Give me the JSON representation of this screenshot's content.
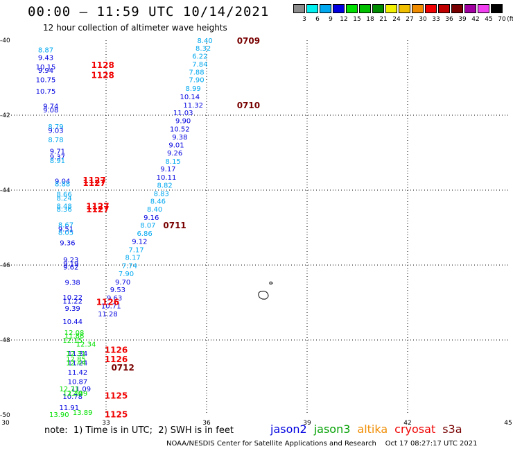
{
  "header": {
    "title": "00:00 – 11:59 UTC 10/14/2021",
    "subtitle": "12 hour collection of altimeter wave heights"
  },
  "legend": {
    "unit": "(ft)",
    "bins": [
      {
        "label": "3",
        "color": "#8c8c8c"
      },
      {
        "label": "6",
        "color": "#00f0f0"
      },
      {
        "label": "9",
        "color": "#00a8f0"
      },
      {
        "label": "12",
        "color": "#0000e0"
      },
      {
        "label": "15",
        "color": "#00e000"
      },
      {
        "label": "18",
        "color": "#00c000"
      },
      {
        "label": "21",
        "color": "#008c00"
      },
      {
        "label": "24",
        "color": "#f0f000"
      },
      {
        "label": "27",
        "color": "#f0c000"
      },
      {
        "label": "30",
        "color": "#f08c00"
      },
      {
        "label": "33",
        "color": "#f00000"
      },
      {
        "label": "36",
        "color": "#c00000"
      },
      {
        "label": "39",
        "color": "#780000"
      },
      {
        "label": "42",
        "color": "#a000a0"
      },
      {
        "label": "45",
        "color": "#f040f0"
      },
      {
        "label": "70",
        "color": "#000000"
      }
    ]
  },
  "axes": {
    "lon_ticks": [
      "30",
      "33",
      "36",
      "39",
      "42",
      "45"
    ],
    "lat_ticks": [
      "-40",
      "-42",
      "-44",
      "-46",
      "-48",
      "-50"
    ],
    "lon_range": [
      30,
      45
    ],
    "lat_range": [
      -40,
      -50
    ]
  },
  "tracks": [
    {
      "satellite": "jason2",
      "points": [
        {
          "lon": 31.2,
          "lat": -40.25,
          "swh": "8.87",
          "c": "#00a8f0"
        },
        {
          "lon": 31.2,
          "lat": -40.45,
          "swh": "9.43",
          "c": "#0000e0"
        },
        {
          "lon": 31.2,
          "lat": -40.7,
          "swh": "10.15",
          "c": "#0000e0"
        },
        {
          "lon": 31.2,
          "lat": -40.8,
          "swh": "9.94",
          "c": "#0000e0"
        },
        {
          "lon": 31.2,
          "lat": -41.05,
          "swh": "10.75",
          "c": "#0000e0"
        },
        {
          "lon": 31.2,
          "lat": -41.35,
          "swh": "10.75",
          "c": "#0000e0"
        },
        {
          "lon": 31.35,
          "lat": -41.75,
          "swh": "9.74",
          "c": "#0000e0"
        },
        {
          "lon": 31.35,
          "lat": -41.85,
          "swh": "9.08",
          "c": "#0000e0"
        },
        {
          "lon": 31.5,
          "lat": -42.3,
          "swh": "8.79",
          "c": "#00a8f0"
        },
        {
          "lon": 31.5,
          "lat": -42.4,
          "swh": "9.03",
          "c": "#0000e0"
        },
        {
          "lon": 31.5,
          "lat": -42.65,
          "swh": "8.78",
          "c": "#00a8f0"
        },
        {
          "lon": 31.55,
          "lat": -42.95,
          "swh": "9.71",
          "c": "#0000e0"
        },
        {
          "lon": 31.55,
          "lat": -43.1,
          "swh": "9.37",
          "c": "#0000e0"
        },
        {
          "lon": 31.55,
          "lat": -43.2,
          "swh": "8.91",
          "c": "#00a8f0"
        },
        {
          "lon": 31.7,
          "lat": -43.75,
          "swh": "9.04",
          "c": "#0000e0"
        },
        {
          "lon": 31.7,
          "lat": -43.82,
          "swh": "8.88",
          "c": "#00a8f0"
        },
        {
          "lon": 31.75,
          "lat": -44.1,
          "swh": "8.66",
          "c": "#00a8f0"
        },
        {
          "lon": 31.75,
          "lat": -44.2,
          "swh": "8.24",
          "c": "#00a8f0"
        },
        {
          "lon": 31.75,
          "lat": -44.42,
          "swh": "8.48",
          "c": "#00a8f0"
        },
        {
          "lon": 31.75,
          "lat": -44.5,
          "swh": "8.36",
          "c": "#00a8f0"
        },
        {
          "lon": 31.8,
          "lat": -44.92,
          "swh": "8.67",
          "c": "#00a8f0"
        },
        {
          "lon": 31.8,
          "lat": -45.03,
          "swh": "9.51",
          "c": "#0000e0"
        },
        {
          "lon": 31.8,
          "lat": -45.12,
          "swh": "8.05",
          "c": "#00a8f0"
        },
        {
          "lon": 31.85,
          "lat": -45.4,
          "swh": "9.36",
          "c": "#0000e0"
        },
        {
          "lon": 31.95,
          "lat": -45.85,
          "swh": "9.23",
          "c": "#0000e0"
        },
        {
          "lon": 31.95,
          "lat": -45.95,
          "swh": "9.19",
          "c": "#0000e0"
        },
        {
          "lon": 31.95,
          "lat": -46.05,
          "swh": "9.62",
          "c": "#0000e0"
        },
        {
          "lon": 32.0,
          "lat": -46.45,
          "swh": "9.38",
          "c": "#0000e0"
        },
        {
          "lon": 32.0,
          "lat": -46.85,
          "swh": "10.22",
          "c": "#0000e0"
        },
        {
          "lon": 32.0,
          "lat": -46.95,
          "swh": "11.22",
          "c": "#0000e0"
        },
        {
          "lon": 32.0,
          "lat": -47.15,
          "swh": "9.39",
          "c": "#0000e0"
        },
        {
          "lon": 32.0,
          "lat": -47.5,
          "swh": "10.44",
          "c": "#0000e0"
        },
        {
          "lon": 32.15,
          "lat": -48.35,
          "swh": "11.34",
          "c": "#0000e0"
        },
        {
          "lon": 32.15,
          "lat": -48.6,
          "swh": "11.24",
          "c": "#0000e0"
        },
        {
          "lon": 32.15,
          "lat": -48.85,
          "swh": "11.42",
          "c": "#0000e0"
        },
        {
          "lon": 32.15,
          "lat": -49.1,
          "swh": "10.87",
          "c": "#0000e0"
        },
        {
          "lon": 32.25,
          "lat": -49.3,
          "swh": "11.09",
          "c": "#0000e0"
        },
        {
          "lon": 32.0,
          "lat": -49.5,
          "swh": "10.78",
          "c": "#0000e0"
        },
        {
          "lon": 31.9,
          "lat": -49.8,
          "swh": "11.91",
          "c": "#0000e0"
        }
      ]
    },
    {
      "satellite": "jason3",
      "points": [
        {
          "lon": 32.05,
          "lat": -47.8,
          "swh": "12.08",
          "c": "#00e000"
        },
        {
          "lon": 32.05,
          "lat": -47.88,
          "swh": "11.86",
          "c": "#00e000"
        },
        {
          "lon": 32.0,
          "lat": -48.0,
          "swh": "12.15",
          "c": "#00e000"
        },
        {
          "lon": 32.4,
          "lat": -48.1,
          "swh": "12.34",
          "c": "#00e000"
        },
        {
          "lon": 32.1,
          "lat": -48.35,
          "swh": "12.31",
          "c": "#00e000"
        },
        {
          "lon": 32.1,
          "lat": -48.5,
          "swh": "12.85",
          "c": "#00e000"
        },
        {
          "lon": 32.1,
          "lat": -48.6,
          "swh": "12.44",
          "c": "#00e000"
        },
        {
          "lon": 31.9,
          "lat": -49.3,
          "swh": "12.71",
          "c": "#00e000"
        },
        {
          "lon": 32.15,
          "lat": -49.42,
          "swh": "12.89",
          "c": "#00e000"
        },
        {
          "lon": 32.0,
          "lat": -49.42,
          "swh": "12.30",
          "c": "#00e000"
        },
        {
          "lon": 31.6,
          "lat": -49.98,
          "swh": "13.90",
          "c": "#00e000"
        },
        {
          "lon": 32.3,
          "lat": -49.93,
          "swh": "13.89",
          "c": "#00e000"
        }
      ]
    },
    {
      "satellite": "s3a",
      "points": [
        {
          "lon": 35.95,
          "lat": -40.0,
          "swh": "8.40",
          "c": "#00a8f0"
        },
        {
          "lon": 35.9,
          "lat": -40.2,
          "swh": "8.32",
          "c": "#00a8f0"
        },
        {
          "lon": 35.8,
          "lat": -40.42,
          "swh": "6.22",
          "c": "#00a8f0"
        },
        {
          "lon": 35.8,
          "lat": -40.63,
          "swh": "7.84",
          "c": "#00a8f0"
        },
        {
          "lon": 35.7,
          "lat": -40.84,
          "swh": "7.88",
          "c": "#00a8f0"
        },
        {
          "lon": 35.7,
          "lat": -41.05,
          "swh": "7.90",
          "c": "#00a8f0"
        },
        {
          "lon": 35.6,
          "lat": -41.28,
          "swh": "8.99",
          "c": "#00a8f0"
        },
        {
          "lon": 35.5,
          "lat": -41.5,
          "swh": "10.14",
          "c": "#0000e0"
        },
        {
          "lon": 35.6,
          "lat": -41.72,
          "swh": "11.32",
          "c": "#0000e0"
        },
        {
          "lon": 35.3,
          "lat": -41.93,
          "swh": "11.03",
          "c": "#0000e0"
        },
        {
          "lon": 35.3,
          "lat": -42.14,
          "swh": "9.90",
          "c": "#0000e0"
        },
        {
          "lon": 35.2,
          "lat": -42.36,
          "swh": "10.52",
          "c": "#0000e0"
        },
        {
          "lon": 35.2,
          "lat": -42.57,
          "swh": "9.38",
          "c": "#0000e0"
        },
        {
          "lon": 35.1,
          "lat": -42.79,
          "swh": "9.01",
          "c": "#0000e0"
        },
        {
          "lon": 35.05,
          "lat": -43.0,
          "swh": "9.26",
          "c": "#0000e0"
        },
        {
          "lon": 35.0,
          "lat": -43.22,
          "swh": "8.15",
          "c": "#00a8f0"
        },
        {
          "lon": 34.85,
          "lat": -43.43,
          "swh": "9.17",
          "c": "#0000e0"
        },
        {
          "lon": 34.8,
          "lat": -43.65,
          "swh": "10.11",
          "c": "#0000e0"
        },
        {
          "lon": 34.75,
          "lat": -43.86,
          "swh": "8.82",
          "c": "#00a8f0"
        },
        {
          "lon": 34.65,
          "lat": -44.08,
          "swh": "8.83",
          "c": "#00a8f0"
        },
        {
          "lon": 34.55,
          "lat": -44.29,
          "swh": "8.46",
          "c": "#00a8f0"
        },
        {
          "lon": 34.45,
          "lat": -44.5,
          "swh": "8.40",
          "c": "#00a8f0"
        },
        {
          "lon": 34.35,
          "lat": -44.72,
          "swh": "9.16",
          "c": "#0000e0"
        },
        {
          "lon": 34.25,
          "lat": -44.93,
          "swh": "8.07",
          "c": "#00a8f0"
        },
        {
          "lon": 34.15,
          "lat": -45.15,
          "swh": "6.86",
          "c": "#00a8f0"
        },
        {
          "lon": 34.0,
          "lat": -45.36,
          "swh": "9.12",
          "c": "#0000e0"
        },
        {
          "lon": 33.9,
          "lat": -45.58,
          "swh": "7.17",
          "c": "#00a8f0"
        },
        {
          "lon": 33.8,
          "lat": -45.79,
          "swh": "8.17",
          "c": "#00a8f0"
        },
        {
          "lon": 33.7,
          "lat": -46.01,
          "swh": "7.74",
          "c": "#00a8f0"
        },
        {
          "lon": 33.6,
          "lat": -46.22,
          "swh": "7.90",
          "c": "#00a8f0"
        },
        {
          "lon": 33.5,
          "lat": -46.44,
          "swh": "9.70",
          "c": "#0000e0"
        },
        {
          "lon": 33.35,
          "lat": -46.65,
          "swh": "9.53",
          "c": "#0000e0"
        },
        {
          "lon": 33.25,
          "lat": -46.87,
          "swh": "9.63",
          "c": "#0000e0"
        },
        {
          "lon": 33.15,
          "lat": -47.08,
          "swh": "10.71",
          "c": "#0000e0"
        },
        {
          "lon": 33.05,
          "lat": -47.3,
          "swh": "11.28",
          "c": "#0000e0"
        }
      ]
    }
  ],
  "time_labels": [
    {
      "lon": 37.25,
      "lat": -40.0,
      "text": "0709",
      "c": "#780000",
      "size": 12
    },
    {
      "lon": 37.25,
      "lat": -41.72,
      "text": "0710",
      "c": "#780000",
      "size": 12
    },
    {
      "lon": 35.05,
      "lat": -44.93,
      "text": "0711",
      "c": "#780000",
      "size": 12
    },
    {
      "lon": 33.5,
      "lat": -48.72,
      "text": "0712",
      "c": "#780000",
      "size": 12
    },
    {
      "lon": 32.9,
      "lat": -40.65,
      "text": "1128",
      "c": "#f00000",
      "size": 13
    },
    {
      "lon": 32.9,
      "lat": -40.92,
      "text": "1128",
      "c": "#f00000",
      "size": 13
    },
    {
      "lon": 32.65,
      "lat": -43.72,
      "text": "1127",
      "c": "#f00000",
      "size": 13
    },
    {
      "lon": 32.65,
      "lat": -43.8,
      "text": "1127",
      "c": "#f00000",
      "size": 13
    },
    {
      "lon": 32.75,
      "lat": -44.42,
      "text": "1127",
      "c": "#f00000",
      "size": 13
    },
    {
      "lon": 32.75,
      "lat": -44.5,
      "text": "1127",
      "c": "#f00000",
      "size": 13
    },
    {
      "lon": 33.05,
      "lat": -46.97,
      "text": "1126",
      "c": "#f00000",
      "size": 13
    },
    {
      "lon": 33.3,
      "lat": -48.25,
      "text": "1126",
      "c": "#f00000",
      "size": 13
    },
    {
      "lon": 33.3,
      "lat": -48.5,
      "text": "1126",
      "c": "#f00000",
      "size": 13
    },
    {
      "lon": 33.3,
      "lat": -49.47,
      "text": "1125",
      "c": "#f00000",
      "size": 13
    },
    {
      "lon": 33.3,
      "lat": -49.97,
      "text": "1125",
      "c": "#f00000",
      "size": 13
    }
  ],
  "footer": {
    "note": "note:  1) Time is in UTC;  2) SWH is in feet",
    "satellites": [
      {
        "name": "jason2",
        "color": "#0000e0"
      },
      {
        "name": "jason3",
        "color": "#00a000"
      },
      {
        "name": "altika",
        "color": "#f08c00"
      },
      {
        "name": "cryosat",
        "color": "#f00000"
      },
      {
        "name": "s3a",
        "color": "#780000"
      }
    ],
    "credit": "NOAA/NESDIS Center for Satellite Applications and Research    Oct 17 08:27:17 UTC 2021"
  }
}
